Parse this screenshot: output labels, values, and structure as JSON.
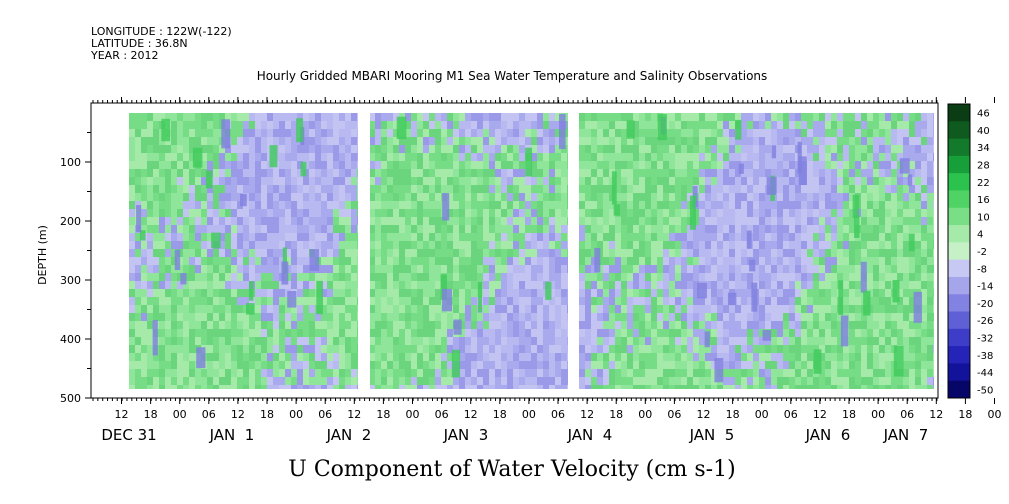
{
  "header": {
    "longitude": "LONGITUDE : 122W(-122)",
    "latitude": "LATITUDE : 36.8N",
    "year": "YEAR : 2012",
    "title": "Hourly Gridded MBARI Mooring M1 Sea Water Temperature and Salinity Observations"
  },
  "chart_data": {
    "type": "heatmap",
    "title": "Hourly Gridded MBARI Mooring M1 Sea Water Temperature and Salinity Observations",
    "xlabel": "U Component of Water Velocity (cm s-1)",
    "ylabel": "DEPTH (m)",
    "y_ticks": [
      100,
      200,
      300,
      400,
      500
    ],
    "ylim": [
      500,
      0
    ],
    "y_inverted": true,
    "x_hour_ticks": [
      "12",
      "18",
      "00",
      "06",
      "12",
      "18",
      "00",
      "06",
      "12",
      "18",
      "00",
      "06",
      "12",
      "18",
      "00",
      "06",
      "12",
      "18",
      "00",
      "06",
      "12",
      "18",
      "00",
      "06",
      "12",
      "18",
      "00",
      "06",
      "12",
      "18",
      "00",
      "06"
    ],
    "x_day_labels": [
      "DEC 31",
      "JAN  1",
      "JAN  2",
      "JAN  3",
      "JAN  4",
      "JAN  5",
      "JAN  6",
      "JAN  7"
    ],
    "colorbar_levels": [
      "46",
      "40",
      "34",
      "28",
      "22",
      "16",
      "10",
      "4",
      "-2",
      "-8",
      "-14",
      "-20",
      "-26",
      "-32",
      "-38",
      "-44",
      "-50"
    ],
    "colorbar_colors": [
      "#0b3d14",
      "#0f5a1f",
      "#137a2b",
      "#17a03a",
      "#2bc24e",
      "#4fd365",
      "#79de86",
      "#a5eaa9",
      "#c6f0c6",
      "#c8c8f4",
      "#a5a5ec",
      "#8282e2",
      "#5f5fd6",
      "#3d3dca",
      "#2424b8",
      "#12129a",
      "#060668"
    ],
    "plot_background": {
      "positive": "#8fe59a",
      "negative": "#a9a9ee"
    }
  }
}
